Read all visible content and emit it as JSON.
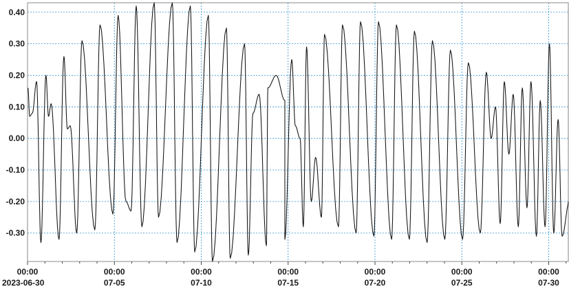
{
  "chart_data": {
    "type": "line",
    "title": "",
    "xlabel": "",
    "ylabel": "",
    "ylim": [
      -0.39,
      0.43
    ],
    "xlim_days": [
      0,
      31.2
    ],
    "grid": true,
    "legend": "none",
    "yticks": [
      {
        "value": 0.4,
        "label": "0.40"
      },
      {
        "value": 0.3,
        "label": "0.30"
      },
      {
        "value": 0.2,
        "label": "0.20"
      },
      {
        "value": 0.1,
        "label": "0.10"
      },
      {
        "value": 0.0,
        "label": "0.00"
      },
      {
        "value": -0.1,
        "label": "-0.10"
      },
      {
        "value": -0.2,
        "label": "-0.20"
      },
      {
        "value": -0.3,
        "label": "-0.30"
      }
    ],
    "xticks": [
      {
        "value": "2023-06-30 00:00",
        "time": "00:00",
        "date": "2023-06-30"
      },
      {
        "value": "2023-07-05 00:00",
        "time": "00:00",
        "date": "07-05"
      },
      {
        "value": "2023-07-10 00:00",
        "time": "00:00",
        "date": "07-10"
      },
      {
        "value": "2023-07-15 00:00",
        "time": "00:00",
        "date": "07-15"
      },
      {
        "value": "2023-07-20 00:00",
        "time": "00:00",
        "date": "07-20"
      },
      {
        "value": "2023-07-25 00:00",
        "time": "00:00",
        "date": "07-25"
      },
      {
        "value": "2023-07-30 00:00",
        "time": "00:00",
        "date": "07-30"
      }
    ],
    "series": [
      {
        "color": "#111111",
        "high_tides": [
          [
            "2023-06-30 00:35",
            0.16
          ],
          [
            "2023-06-30 06:40",
            0.08
          ],
          [
            "2023-06-30 12:30",
            0.18
          ],
          [
            "2023-07-01 01:25",
            0.2
          ],
          [
            "2023-07-01 08:40",
            0.11
          ],
          [
            "2023-07-02 02:15",
            0.26
          ],
          [
            "2023-07-02 11:00",
            0.04
          ],
          [
            "2023-07-03 03:15",
            0.31
          ],
          [
            "2023-07-04 04:10",
            0.36
          ],
          [
            "2023-07-05 05:10",
            0.39
          ],
          [
            "2023-07-06 06:10",
            0.42
          ],
          [
            "2023-07-07 07:00",
            0.43
          ],
          [
            "2023-07-08 08:00",
            0.43
          ],
          [
            "2023-07-09 08:55",
            0.42
          ],
          [
            "2023-07-10 09:50",
            0.39
          ],
          [
            "2023-07-11 10:45",
            0.35
          ],
          [
            "2023-07-12 11:50",
            0.3
          ],
          [
            "2023-07-12 23:30",
            0.08
          ],
          [
            "2023-07-13 08:00",
            0.14
          ],
          [
            "2023-07-13 20:00",
            0.16
          ],
          [
            "2023-07-14 07:30",
            0.2
          ],
          [
            "2023-07-14 19:30",
            0.12
          ],
          [
            "2023-07-15 05:00",
            0.25
          ],
          [
            "2023-07-15 16:30",
            0.0
          ],
          [
            "2023-07-16 01:30",
            0.29
          ],
          [
            "2023-07-16 14:00",
            -0.06
          ],
          [
            "2023-07-17 02:20",
            0.33
          ],
          [
            "2023-07-18 03:10",
            0.36
          ],
          [
            "2023-07-19 04:00",
            0.37
          ],
          [
            "2023-07-20 04:50",
            0.37
          ],
          [
            "2023-07-21 05:40",
            0.36
          ],
          [
            "2023-07-22 06:30",
            0.34
          ],
          [
            "2023-07-23 07:20",
            0.31
          ],
          [
            "2023-07-24 08:10",
            0.28
          ],
          [
            "2023-07-25 09:00",
            0.24
          ],
          [
            "2023-07-26 09:50",
            0.21
          ],
          [
            "2023-07-26 22:30",
            0.1
          ],
          [
            "2023-07-27 10:40",
            0.18
          ],
          [
            "2023-07-27 23:00",
            0.14
          ],
          [
            "2023-07-28 11:30",
            0.16
          ],
          [
            "2023-07-28 23:30",
            0.18
          ],
          [
            "2023-07-29 12:20",
            0.12
          ],
          [
            "2023-07-30 01:00",
            0.3
          ],
          [
            "2023-07-30 13:00",
            0.06
          ]
        ],
        "low_tides": [
          [
            "2023-06-30 03:00",
            0.07
          ],
          [
            "2023-06-30 18:30",
            -0.33
          ],
          [
            "2023-07-01 05:00",
            0.07
          ],
          [
            "2023-07-01 19:30",
            -0.32
          ],
          [
            "2023-07-02 07:00",
            0.03
          ],
          [
            "2023-07-02 20:00",
            -0.3
          ],
          [
            "2023-07-03 21:00",
            -0.29
          ],
          [
            "2023-07-04 22:00",
            -0.24
          ],
          [
            "2023-07-05 16:00",
            -0.2
          ],
          [
            "2023-07-05 23:00",
            -0.23
          ],
          [
            "2023-07-06 14:00",
            -0.28
          ],
          [
            "2023-07-07 13:00",
            -0.25
          ],
          [
            "2023-07-08 14:30",
            -0.33
          ],
          [
            "2023-07-09 15:00",
            -0.36
          ],
          [
            "2023-07-10 15:30",
            -0.39
          ],
          [
            "2023-07-11 16:00",
            -0.38
          ],
          [
            "2023-07-12 17:00",
            -0.37
          ],
          [
            "2023-07-13 18:00",
            -0.34
          ],
          [
            "2023-07-14 19:30",
            -0.32
          ],
          [
            "2023-07-15 10:00",
            0.04
          ],
          [
            "2023-07-15 21:00",
            -0.28
          ],
          [
            "2023-07-16 08:00",
            -0.2
          ],
          [
            "2023-07-16 22:00",
            -0.25
          ],
          [
            "2023-07-17 21:30",
            -0.28
          ],
          [
            "2023-07-18 22:00",
            -0.3
          ],
          [
            "2023-07-19 22:30",
            -0.31
          ],
          [
            "2023-07-20 23:00",
            -0.32
          ],
          [
            "2023-07-21 23:30",
            -0.32
          ],
          [
            "2023-07-23 00:00",
            -0.33
          ],
          [
            "2023-07-24 00:30",
            -0.32
          ],
          [
            "2023-07-25 01:00",
            -0.32
          ],
          [
            "2023-07-26 01:30",
            -0.3
          ],
          [
            "2023-07-26 16:30",
            0.0
          ],
          [
            "2023-07-27 05:00",
            -0.27
          ],
          [
            "2023-07-27 17:00",
            -0.05
          ],
          [
            "2023-07-28 06:00",
            -0.28
          ],
          [
            "2023-07-28 18:00",
            -0.22
          ],
          [
            "2023-07-29 07:00",
            -0.31
          ],
          [
            "2023-07-29 19:00",
            -0.28
          ],
          [
            "2023-07-30 07:00",
            -0.3
          ],
          [
            "2023-07-30 18:30",
            -0.31
          ],
          [
            "2023-07-31 04:30",
            -0.2
          ]
        ]
      }
    ]
  }
}
